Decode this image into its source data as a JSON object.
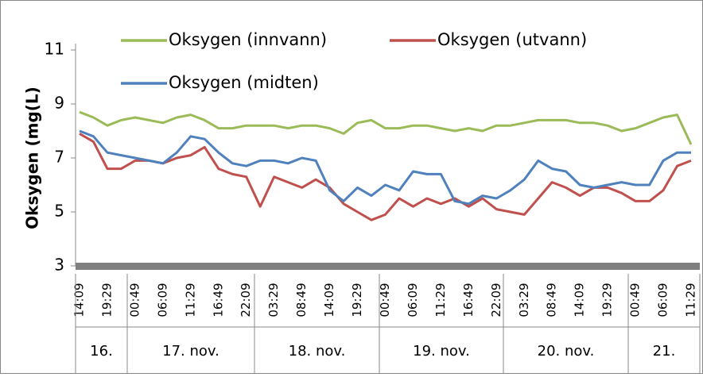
{
  "chart_data": {
    "type": "line",
    "y_label": "Oksygen (mg(L)",
    "categories": [
      "14:09",
      null,
      "19:29",
      null,
      "00:49",
      null,
      "06:09",
      null,
      "11:29",
      null,
      "16:49",
      null,
      "22:09",
      null,
      "03:29",
      null,
      "08:49",
      null,
      "14:09",
      null,
      "19:29",
      null,
      "00:49",
      null,
      "06:09",
      null,
      "11:29",
      null,
      "16:49",
      null,
      "22:09",
      null,
      "03:29",
      null,
      "08:49",
      null,
      "14:09",
      null,
      "19:29",
      null,
      "00:49",
      null,
      "06:09",
      null,
      "11:29"
    ],
    "day_labels": [
      "16.",
      "17. nov.",
      "18. nov.",
      "19. nov.",
      "20. nov.",
      "21."
    ],
    "series": [
      {
        "name": "Oksygen (innvann)",
        "color": "#9bbb59",
        "values": [
          8.7,
          8.5,
          8.2,
          8.4,
          8.5,
          8.4,
          8.3,
          8.5,
          8.6,
          8.4,
          8.1,
          8.1,
          8.2,
          8.2,
          8.2,
          8.1,
          8.2,
          8.2,
          8.1,
          7.9,
          8.3,
          8.4,
          8.1,
          8.1,
          8.2,
          8.2,
          8.1,
          8.0,
          8.1,
          8.0,
          8.2,
          8.2,
          8.3,
          8.4,
          8.4,
          8.4,
          8.3,
          8.3,
          8.2,
          8.0,
          8.1,
          8.3,
          8.5,
          8.6,
          7.5
        ]
      },
      {
        "name": "Oksygen (utvann)",
        "color": "#c0504d",
        "values": [
          7.9,
          7.6,
          6.6,
          6.6,
          6.9,
          6.9,
          6.8,
          7.0,
          7.1,
          7.4,
          6.6,
          6.4,
          6.3,
          5.2,
          6.3,
          6.1,
          5.9,
          6.2,
          5.9,
          5.3,
          5.0,
          4.7,
          4.9,
          5.5,
          5.2,
          5.5,
          5.3,
          5.5,
          5.2,
          5.5,
          5.1,
          5.0,
          4.9,
          5.5,
          6.1,
          5.9,
          5.6,
          5.9,
          5.9,
          5.7,
          5.4,
          5.4,
          5.8,
          6.7,
          6.9
        ]
      },
      {
        "name": "Oksygen (midten)",
        "color": "#4f81bd",
        "values": [
          8.0,
          7.8,
          7.2,
          7.1,
          7.0,
          6.9,
          6.8,
          7.2,
          7.8,
          7.7,
          7.2,
          6.8,
          6.7,
          6.9,
          6.9,
          6.8,
          7.0,
          6.9,
          5.8,
          5.4,
          5.9,
          5.6,
          6.0,
          5.8,
          6.5,
          6.4,
          6.4,
          5.4,
          5.3,
          5.6,
          5.5,
          5.8,
          6.2,
          6.9,
          6.6,
          6.5,
          6.0,
          5.9,
          6.0,
          6.1,
          6.0,
          6.0,
          6.9,
          7.2,
          7.2
        ]
      }
    ],
    "ylim": [
      3,
      11
    ],
    "yticks": [
      3,
      5,
      7,
      9,
      11
    ],
    "grid": false
  }
}
